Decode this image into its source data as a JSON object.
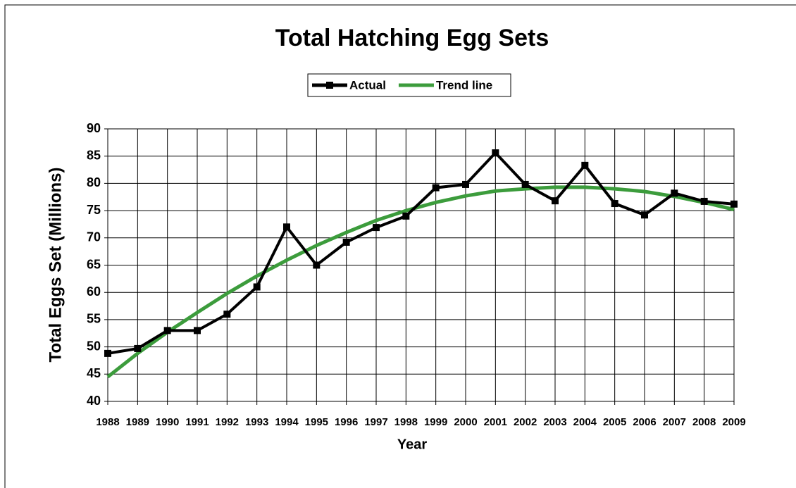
{
  "chart_data": {
    "type": "line",
    "title": "Total Hatching Egg Sets",
    "x_label": "Year",
    "y_label": "Total Eggs Set (Millions)",
    "categories": [
      "1988",
      "1989",
      "1990",
      "1991",
      "1992",
      "1993",
      "1994",
      "1995",
      "1996",
      "1997",
      "1998",
      "1999",
      "2000",
      "2001",
      "2002",
      "2003",
      "2004",
      "2005",
      "2006",
      "2007",
      "2008",
      "2009"
    ],
    "series": [
      {
        "name": "Actual",
        "color": "#000000",
        "marker": "square",
        "values": [
          48.8,
          49.7,
          53,
          53,
          56,
          61,
          72,
          65,
          69.2,
          71.9,
          74,
          79.2,
          79.8,
          85.6,
          79.8,
          76.8,
          83.3,
          76.3,
          74.2,
          78.2,
          76.7,
          76.2
        ]
      },
      {
        "name": "Trend line",
        "color": "#3c9c3c",
        "marker": "none",
        "values": [
          44.5,
          48.8,
          52.7,
          56.3,
          59.8,
          63.0,
          65.9,
          68.6,
          71.0,
          73.2,
          75.0,
          76.5,
          77.7,
          78.6,
          79.0,
          79.3,
          79.3,
          79.0,
          78.5,
          77.6,
          76.5,
          75.2
        ]
      }
    ],
    "ylim": [
      40,
      90
    ],
    "yticks": [
      40,
      45,
      50,
      55,
      60,
      65,
      70,
      75,
      80,
      85,
      90
    ],
    "grid": true,
    "legend": "top"
  }
}
